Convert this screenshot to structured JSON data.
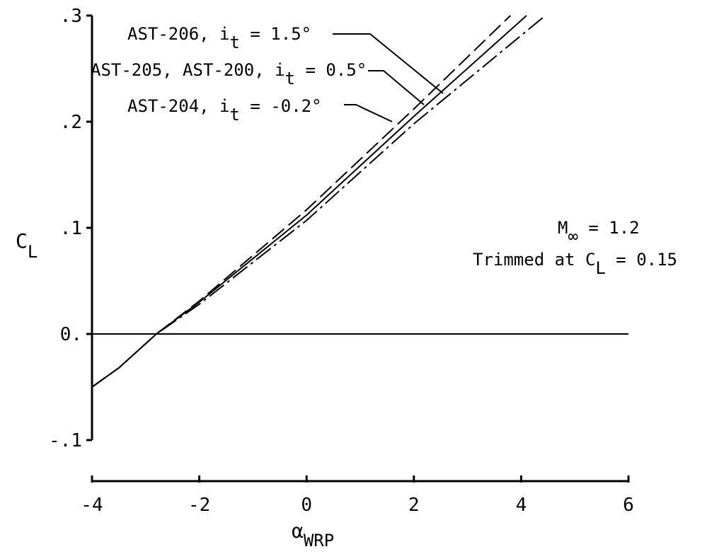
{
  "chart_data": {
    "type": "line",
    "x_axis": {
      "label": "α",
      "label_subscript": "WRP",
      "range": [
        -4,
        6
      ],
      "ticks": [
        -4,
        -2,
        0,
        2,
        4,
        6
      ],
      "tick_labels": [
        "-4",
        "-2",
        "0",
        "2",
        "4",
        "6"
      ]
    },
    "y_axis": {
      "label": "C",
      "label_subscript": "L",
      "range": [
        -0.1,
        0.3
      ],
      "ticks": [
        -0.1,
        0,
        0.1,
        0.2,
        0.3
      ],
      "tick_labels": [
        "-.1",
        "0.",
        ".1",
        ".2",
        ".3"
      ]
    },
    "grid": false,
    "series": [
      {
        "name": "AST-206, i_t = 1.5°",
        "label_parts": [
          "AST-206, i",
          "t",
          " = 1.5°"
        ],
        "line_style": "dashed",
        "x": [
          -4.0,
          -3.5,
          -2.8,
          -2.0,
          0.0,
          2.0,
          3.8
        ],
        "y": [
          -0.05,
          -0.032,
          0.0,
          0.031,
          0.117,
          0.212,
          0.3
        ]
      },
      {
        "name": "AST-205, AST-200, i_t = 0.5°",
        "label_parts": [
          "AST-205, AST-200, i",
          "t",
          " = 0.5°"
        ],
        "line_style": "solid",
        "x": [
          -4.0,
          -3.5,
          -2.8,
          -2.0,
          0.0,
          2.0,
          4.1
        ],
        "y": [
          -0.05,
          -0.032,
          0.0,
          0.03,
          0.112,
          0.205,
          0.3
        ]
      },
      {
        "name": "AST-204, i_t = -0.2°",
        "label_parts": [
          "AST-204, i",
          "t",
          " = -0.2°"
        ],
        "line_style": "dash-dot",
        "x": [
          -4.0,
          -3.5,
          -2.8,
          -2.0,
          0.0,
          2.0,
          4.45
        ],
        "y": [
          -0.05,
          -0.032,
          0.0,
          0.028,
          0.107,
          0.198,
          0.3
        ]
      }
    ],
    "reference_line": {
      "y": 0.0,
      "x_range": [
        -4,
        6
      ]
    },
    "annotation": {
      "line1_prefix": "M",
      "line1_subscript": "∞",
      "line1_suffix": " = 1.2",
      "line2_prefix": "Trimmed at C",
      "line2_subscript": "L",
      "line2_suffix": " = 0.15"
    }
  }
}
